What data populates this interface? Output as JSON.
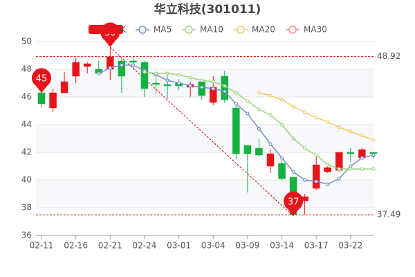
{
  "chart_data": {
    "type": "candlestick",
    "title": "华立科技(301011)",
    "categories": [
      "02-11",
      null,
      null,
      "02-16",
      null,
      null,
      "02-21",
      null,
      null,
      "02-24",
      null,
      null,
      "03-01",
      null,
      null,
      "03-04",
      null,
      null,
      "03-09",
      null,
      null,
      "03-14",
      null,
      null,
      "03-17",
      null,
      null,
      "03-22",
      null,
      null
    ],
    "ohlc": {
      "name": "K",
      "color": "#e8141b",
      "up_color": "#e8141b",
      "down_color": "#14b143",
      "open": [
        46.3,
        45.2,
        46.3,
        47.5,
        48.2,
        48.0,
        48.0,
        48.6,
        48.6,
        48.5,
        47.0,
        46.9,
        47.0,
        46.7,
        47.1,
        45.6,
        47.5,
        45.2,
        42.5,
        42.3,
        41.0,
        41.2,
        40.2,
        38.5,
        39.4,
        40.6,
        40.7,
        42.0,
        41.6,
        42.0
      ],
      "high": [
        47.0,
        46.6,
        47.8,
        48.8,
        48.5,
        48.6,
        49.6,
        48.8,
        48.9,
        48.6,
        47.4,
        47.6,
        47.3,
        47.1,
        47.2,
        47.5,
        47.9,
        45.5,
        42.5,
        43.0,
        42.2,
        41.5,
        40.2,
        39.0,
        41.7,
        41.1,
        42.0,
        42.3,
        42.3,
        42.0
      ],
      "low": [
        45.2,
        44.9,
        46.3,
        47.0,
        47.7,
        47.6,
        47.2,
        46.3,
        48.0,
        46.0,
        46.2,
        45.9,
        46.5,
        46.0,
        45.8,
        45.4,
        45.6,
        41.5,
        39.1,
        41.7,
        40.5,
        40.0,
        37.4,
        37.5,
        39.3,
        40.5,
        40.6,
        41.3,
        41.5,
        41.6
      ],
      "close": [
        45.5,
        46.3,
        47.1,
        48.5,
        48.4,
        47.7,
        48.9,
        47.5,
        48.5,
        46.6,
        46.9,
        46.8,
        46.8,
        46.9,
        46.1,
        46.7,
        45.8,
        41.9,
        41.9,
        41.8,
        41.9,
        40.1,
        37.5,
        38.8,
        41.1,
        40.9,
        42.0,
        41.9,
        42.2,
        41.9
      ]
    },
    "series": [
      {
        "name": "MA5",
        "color": "#7590c8",
        "values": [
          null,
          null,
          null,
          null,
          null,
          47.7,
          48.1,
          48.3,
          48.3,
          47.9,
          47.6,
          47.2,
          47.0,
          46.8,
          46.7,
          46.6,
          46.4,
          45.5,
          44.8,
          43.7,
          42.6,
          41.6,
          40.6,
          40.0,
          39.9,
          39.7,
          40.1,
          41.0,
          41.6,
          41.8
        ]
      },
      {
        "name": "MA10",
        "color": "#9fd37a",
        "values": [
          null,
          null,
          null,
          null,
          null,
          null,
          null,
          null,
          null,
          47.8,
          47.7,
          47.7,
          47.6,
          47.4,
          47.2,
          47.1,
          46.8,
          46.3,
          45.7,
          45.1,
          44.7,
          44.0,
          43.0,
          42.3,
          41.8,
          41.1,
          40.8,
          40.8,
          40.8,
          40.8
        ]
      },
      {
        "name": "MA20",
        "color": "#f5c96a",
        "values": [
          null,
          null,
          null,
          null,
          null,
          null,
          null,
          null,
          null,
          null,
          null,
          null,
          null,
          null,
          null,
          null,
          null,
          null,
          null,
          46.3,
          46.1,
          45.8,
          45.3,
          44.9,
          44.5,
          44.2,
          43.8,
          43.5,
          43.2,
          42.9
        ]
      },
      {
        "name": "MA30",
        "color": "#f08a8a",
        "values": [
          null,
          null,
          null,
          null,
          null,
          null,
          null,
          null,
          null,
          null,
          null,
          null,
          null,
          null,
          null,
          null,
          null,
          null,
          null,
          null,
          null,
          null,
          null,
          null,
          null,
          null,
          null,
          null,
          null,
          null
        ]
      }
    ],
    "ylim": [
      36,
      50
    ],
    "yticks": [
      36,
      38,
      40,
      42,
      44,
      46,
      48,
      50
    ],
    "grid": true,
    "hlines": [
      48.92,
      37.49
    ],
    "annotations": [
      "50",
      "45",
      "37"
    ]
  }
}
